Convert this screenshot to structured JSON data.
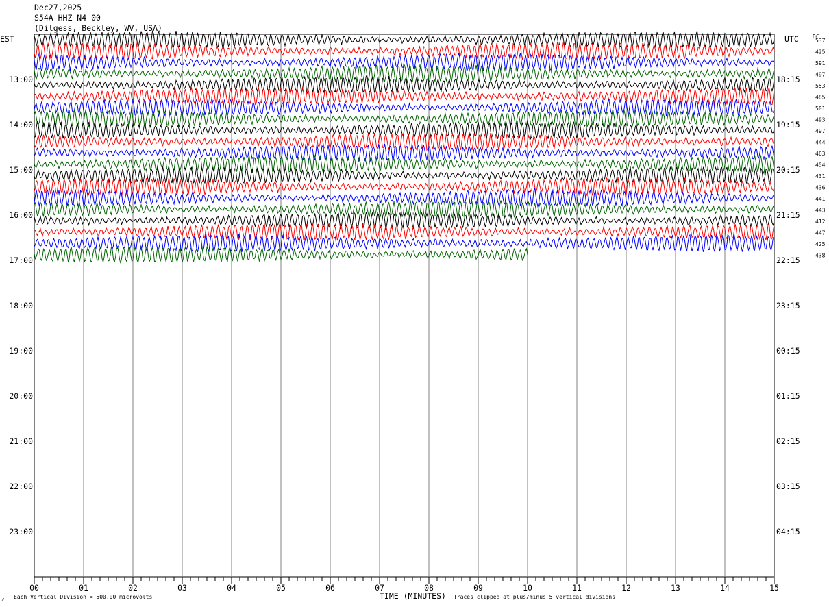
{
  "header": {
    "date": "Dec27,2025",
    "station": "S54A HHZ N4 00",
    "location": "(Dilgess, Beckley, WV, USA)"
  },
  "corner_left": "EST",
  "corner_right": "UTC",
  "dc_label": "DC",
  "footer": {
    "scale": "Each Vertical Division =  500.00 microvolts",
    "clip": "Traces clipped at plus/minus 5 vertical divisions",
    "mark": "↗"
  },
  "colors": {
    "trace_cycle": [
      "#000000",
      "#ff0000",
      "#0000ff",
      "#006400"
    ],
    "grid": "#808080"
  },
  "chart_data": {
    "type": "line",
    "title": "Dec27,2025 S54A HHZ N4 00 (Dilgess, Beckley, WV, USA)",
    "xlabel": "TIME (MINUTES)",
    "ylabel": "",
    "xlim": [
      0,
      15
    ],
    "x_ticks": [
      "00",
      "01",
      "02",
      "03",
      "04",
      "05",
      "06",
      "07",
      "08",
      "09",
      "10",
      "11",
      "12",
      "13",
      "14",
      "15"
    ],
    "left_hour_labels": [
      "13:00",
      "14:00",
      "15:00",
      "16:00",
      "17:00",
      "18:00",
      "19:00",
      "20:00",
      "21:00",
      "22:00",
      "23:00"
    ],
    "right_hour_labels": [
      "18:15",
      "19:15",
      "20:15",
      "21:15",
      "22:15",
      "23:15",
      "00:15",
      "01:15",
      "02:15",
      "03:15",
      "04:15"
    ],
    "traces_per_hour": 4,
    "trace_minutes": 15,
    "dc_offsets": [
      537,
      425,
      591,
      497,
      553,
      485,
      501,
      493,
      497,
      444,
      463,
      454,
      431,
      436,
      441,
      443,
      412,
      447,
      425,
      438
    ],
    "last_trace_end_minute": 10,
    "trace_colors": [
      "#000000",
      "#ff0000",
      "#0000ff",
      "#006400"
    ],
    "grid": true
  }
}
